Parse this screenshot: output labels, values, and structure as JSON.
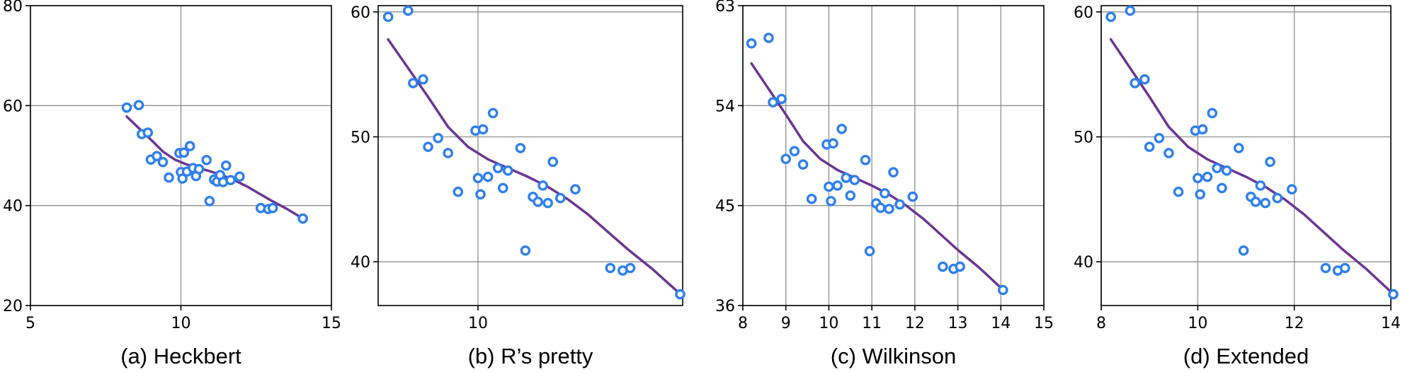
{
  "chart_data": [
    {
      "type": "scatter",
      "caption": "(a) Heckbert",
      "xlim": [
        5,
        15
      ],
      "ylim": [
        20,
        80
      ],
      "xticks": [
        5,
        10,
        15
      ],
      "yticks": [
        20,
        40,
        60,
        80
      ],
      "xtick_labels": [
        "5",
        "10",
        "15"
      ],
      "ytick_labels": [
        "20",
        "40",
        "60",
        "80"
      ],
      "grid": true,
      "points": [
        [
          8.2,
          59.6
        ],
        [
          8.6,
          60.1
        ],
        [
          8.7,
          54.3
        ],
        [
          8.9,
          54.6
        ],
        [
          9.0,
          49.2
        ],
        [
          9.2,
          49.9
        ],
        [
          9.4,
          48.7
        ],
        [
          9.6,
          45.6
        ],
        [
          9.95,
          50.5
        ],
        [
          10.0,
          46.7
        ],
        [
          10.05,
          45.4
        ],
        [
          10.1,
          50.6
        ],
        [
          10.2,
          46.8
        ],
        [
          10.3,
          51.9
        ],
        [
          10.4,
          47.5
        ],
        [
          10.5,
          45.9
        ],
        [
          10.6,
          47.3
        ],
        [
          10.85,
          49.1
        ],
        [
          10.95,
          40.9
        ],
        [
          11.1,
          45.2
        ],
        [
          11.2,
          44.8
        ],
        [
          11.3,
          46.1
        ],
        [
          11.4,
          44.7
        ],
        [
          11.5,
          48.0
        ],
        [
          11.65,
          45.1
        ],
        [
          11.95,
          45.8
        ],
        [
          12.65,
          39.5
        ],
        [
          12.9,
          39.3
        ],
        [
          13.05,
          39.5
        ],
        [
          14.05,
          37.4
        ]
      ],
      "trend": [
        [
          8.2,
          57.8
        ],
        [
          8.6,
          55.5
        ],
        [
          9.0,
          53.2
        ],
        [
          9.4,
          50.8
        ],
        [
          9.8,
          49.2
        ],
        [
          10.2,
          48.2
        ],
        [
          10.6,
          47.5
        ],
        [
          11.0,
          46.8
        ],
        [
          11.4,
          46.0
        ],
        [
          11.8,
          45.0
        ],
        [
          12.2,
          43.8
        ],
        [
          12.6,
          42.4
        ],
        [
          13.0,
          41.0
        ],
        [
          13.5,
          39.4
        ],
        [
          14.0,
          37.6
        ]
      ],
      "colors": {
        "marker": "#2f7fef",
        "trend": "#6b3594"
      }
    },
    {
      "type": "scatter",
      "caption": "(b) R’s pretty",
      "xlim": [
        8.0,
        14.1
      ],
      "ylim": [
        36.5,
        60.5
      ],
      "xticks": [
        10
      ],
      "yticks": [
        40,
        50,
        60
      ],
      "xtick_labels": [
        "10"
      ],
      "ytick_labels": [
        "40",
        "50",
        "60"
      ],
      "grid": true,
      "points": [
        [
          8.2,
          59.6
        ],
        [
          8.6,
          60.1
        ],
        [
          8.7,
          54.3
        ],
        [
          8.9,
          54.6
        ],
        [
          9.0,
          49.2
        ],
        [
          9.2,
          49.9
        ],
        [
          9.4,
          48.7
        ],
        [
          9.6,
          45.6
        ],
        [
          9.95,
          50.5
        ],
        [
          10.0,
          46.7
        ],
        [
          10.05,
          45.4
        ],
        [
          10.1,
          50.6
        ],
        [
          10.2,
          46.8
        ],
        [
          10.3,
          51.9
        ],
        [
          10.4,
          47.5
        ],
        [
          10.5,
          45.9
        ],
        [
          10.6,
          47.3
        ],
        [
          10.85,
          49.1
        ],
        [
          10.95,
          40.9
        ],
        [
          11.1,
          45.2
        ],
        [
          11.2,
          44.8
        ],
        [
          11.3,
          46.1
        ],
        [
          11.4,
          44.7
        ],
        [
          11.5,
          48.0
        ],
        [
          11.65,
          45.1
        ],
        [
          11.95,
          45.8
        ],
        [
          12.65,
          39.5
        ],
        [
          12.9,
          39.3
        ],
        [
          13.05,
          39.5
        ],
        [
          14.05,
          37.4
        ]
      ],
      "trend": [
        [
          8.2,
          57.8
        ],
        [
          8.6,
          55.5
        ],
        [
          9.0,
          53.2
        ],
        [
          9.4,
          50.8
        ],
        [
          9.8,
          49.2
        ],
        [
          10.2,
          48.2
        ],
        [
          10.6,
          47.5
        ],
        [
          11.0,
          46.8
        ],
        [
          11.4,
          46.0
        ],
        [
          11.8,
          45.0
        ],
        [
          12.2,
          43.8
        ],
        [
          12.6,
          42.4
        ],
        [
          13.0,
          41.0
        ],
        [
          13.5,
          39.4
        ],
        [
          14.0,
          37.6
        ]
      ],
      "colors": {
        "marker": "#2f7fef",
        "trend": "#6b3594"
      }
    },
    {
      "type": "scatter",
      "caption": "(c) Wilkinson",
      "xlim": [
        8,
        15
      ],
      "ylim": [
        36,
        63
      ],
      "xticks": [
        8,
        9,
        10,
        11,
        12,
        13,
        14,
        15
      ],
      "yticks": [
        36,
        45,
        54,
        63
      ],
      "xtick_labels": [
        "8",
        "9",
        "10",
        "11",
        "12",
        "13",
        "14",
        "15"
      ],
      "ytick_labels": [
        "36",
        "45",
        "54",
        "63"
      ],
      "grid": true,
      "points": [
        [
          8.2,
          59.6
        ],
        [
          8.6,
          60.1
        ],
        [
          8.7,
          54.3
        ],
        [
          8.9,
          54.6
        ],
        [
          9.0,
          49.2
        ],
        [
          9.2,
          49.9
        ],
        [
          9.4,
          48.7
        ],
        [
          9.6,
          45.6
        ],
        [
          9.95,
          50.5
        ],
        [
          10.0,
          46.7
        ],
        [
          10.05,
          45.4
        ],
        [
          10.1,
          50.6
        ],
        [
          10.2,
          46.8
        ],
        [
          10.3,
          51.9
        ],
        [
          10.4,
          47.5
        ],
        [
          10.5,
          45.9
        ],
        [
          10.6,
          47.3
        ],
        [
          10.85,
          49.1
        ],
        [
          10.95,
          40.9
        ],
        [
          11.1,
          45.2
        ],
        [
          11.2,
          44.8
        ],
        [
          11.3,
          46.1
        ],
        [
          11.4,
          44.7
        ],
        [
          11.5,
          48.0
        ],
        [
          11.65,
          45.1
        ],
        [
          11.95,
          45.8
        ],
        [
          12.65,
          39.5
        ],
        [
          12.9,
          39.3
        ],
        [
          13.05,
          39.5
        ],
        [
          14.05,
          37.4
        ]
      ],
      "trend": [
        [
          8.2,
          57.8
        ],
        [
          8.6,
          55.5
        ],
        [
          9.0,
          53.2
        ],
        [
          9.4,
          50.8
        ],
        [
          9.8,
          49.2
        ],
        [
          10.2,
          48.2
        ],
        [
          10.6,
          47.5
        ],
        [
          11.0,
          46.8
        ],
        [
          11.4,
          46.0
        ],
        [
          11.8,
          45.0
        ],
        [
          12.2,
          43.8
        ],
        [
          12.6,
          42.4
        ],
        [
          13.0,
          41.0
        ],
        [
          13.5,
          39.4
        ],
        [
          14.0,
          37.6
        ]
      ],
      "colors": {
        "marker": "#2f7fef",
        "trend": "#6b3594"
      }
    },
    {
      "type": "scatter",
      "caption": "(d) Extended",
      "xlim": [
        8,
        14
      ],
      "ylim": [
        36.5,
        60.5
      ],
      "xticks": [
        8,
        10,
        12,
        14
      ],
      "yticks": [
        40,
        50,
        60
      ],
      "xtick_labels": [
        "8",
        "10",
        "12",
        "14"
      ],
      "ytick_labels": [
        "40",
        "50",
        "60"
      ],
      "grid": true,
      "points": [
        [
          8.2,
          59.6
        ],
        [
          8.6,
          60.1
        ],
        [
          8.7,
          54.3
        ],
        [
          8.9,
          54.6
        ],
        [
          9.0,
          49.2
        ],
        [
          9.2,
          49.9
        ],
        [
          9.4,
          48.7
        ],
        [
          9.6,
          45.6
        ],
        [
          9.95,
          50.5
        ],
        [
          10.0,
          46.7
        ],
        [
          10.05,
          45.4
        ],
        [
          10.1,
          50.6
        ],
        [
          10.2,
          46.8
        ],
        [
          10.3,
          51.9
        ],
        [
          10.4,
          47.5
        ],
        [
          10.5,
          45.9
        ],
        [
          10.6,
          47.3
        ],
        [
          10.85,
          49.1
        ],
        [
          10.95,
          40.9
        ],
        [
          11.1,
          45.2
        ],
        [
          11.2,
          44.8
        ],
        [
          11.3,
          46.1
        ],
        [
          11.4,
          44.7
        ],
        [
          11.5,
          48.0
        ],
        [
          11.65,
          45.1
        ],
        [
          11.95,
          45.8
        ],
        [
          12.65,
          39.5
        ],
        [
          12.9,
          39.3
        ],
        [
          13.05,
          39.5
        ],
        [
          14.05,
          37.4
        ]
      ],
      "trend": [
        [
          8.2,
          57.8
        ],
        [
          8.6,
          55.5
        ],
        [
          9.0,
          53.2
        ],
        [
          9.4,
          50.8
        ],
        [
          9.8,
          49.2
        ],
        [
          10.2,
          48.2
        ],
        [
          10.6,
          47.5
        ],
        [
          11.0,
          46.8
        ],
        [
          11.4,
          46.0
        ],
        [
          11.8,
          45.0
        ],
        [
          12.2,
          43.8
        ],
        [
          12.6,
          42.4
        ],
        [
          13.0,
          41.0
        ],
        [
          13.5,
          39.4
        ],
        [
          14.0,
          37.6
        ]
      ],
      "colors": {
        "marker": "#2f7fef",
        "trend": "#6b3594"
      }
    }
  ]
}
